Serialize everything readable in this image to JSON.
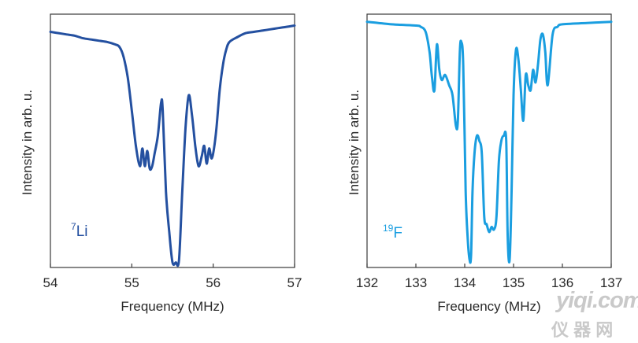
{
  "chart_data": [
    {
      "type": "line",
      "xlabel": "Frequency (MHz)",
      "ylabel": "Intensity in arb. u.",
      "xlim": [
        54,
        57
      ],
      "ylim": [
        0,
        1
      ],
      "xticks": [
        "54",
        "55",
        "56",
        "57"
      ],
      "yticks": [],
      "grid": false,
      "annotation": {
        "sup": "7",
        "text": "Li",
        "placement": "bottom-left"
      },
      "series": [
        {
          "color": "#2450a0",
          "x": [
            54.0,
            54.1,
            54.2,
            54.3,
            54.4,
            54.5,
            54.6,
            54.7,
            54.8,
            54.85,
            54.9,
            54.95,
            55.0,
            55.05,
            55.1,
            55.13,
            55.16,
            55.19,
            55.22,
            55.25,
            55.28,
            55.32,
            55.36,
            55.38,
            55.42,
            55.46,
            55.5,
            55.54,
            55.58,
            55.62,
            55.66,
            55.7,
            55.74,
            55.78,
            55.82,
            55.86,
            55.89,
            55.92,
            55.95,
            55.98,
            56.01,
            56.04,
            56.08,
            56.12,
            56.16,
            56.2,
            56.3,
            56.4,
            56.5,
            56.6,
            56.7,
            56.8,
            56.9,
            57.0
          ],
          "y": [
            0.93,
            0.925,
            0.92,
            0.915,
            0.905,
            0.9,
            0.895,
            0.89,
            0.88,
            0.87,
            0.83,
            0.75,
            0.62,
            0.48,
            0.4,
            0.47,
            0.4,
            0.46,
            0.39,
            0.4,
            0.45,
            0.52,
            0.65,
            0.62,
            0.3,
            0.14,
            0.02,
            0.02,
            0.03,
            0.3,
            0.55,
            0.68,
            0.6,
            0.48,
            0.4,
            0.44,
            0.48,
            0.41,
            0.47,
            0.43,
            0.47,
            0.55,
            0.7,
            0.8,
            0.86,
            0.89,
            0.91,
            0.925,
            0.93,
            0.935,
            0.94,
            0.945,
            0.95,
            0.955
          ]
        }
      ]
    },
    {
      "type": "line",
      "xlabel": "Frequency (MHz)",
      "ylabel": "Intensity in arb. u.",
      "xlim": [
        132,
        137
      ],
      "ylim": [
        0,
        1
      ],
      "xticks": [
        "132",
        "133",
        "134",
        "135",
        "136",
        "137"
      ],
      "yticks": [],
      "grid": false,
      "annotation": {
        "sup": "19",
        "text": "F",
        "placement": "bottom-left"
      },
      "series": [
        {
          "color": "#1a9ee0",
          "x": [
            132.0,
            132.5,
            133.0,
            133.1,
            133.2,
            133.28,
            133.33,
            133.38,
            133.43,
            133.48,
            133.53,
            133.6,
            133.68,
            133.75,
            133.82,
            133.86,
            133.9,
            133.93,
            133.97,
            134.02,
            134.06,
            134.1,
            134.13,
            134.16,
            134.2,
            134.25,
            134.3,
            134.35,
            134.4,
            134.45,
            134.5,
            134.55,
            134.6,
            134.65,
            134.7,
            134.75,
            134.8,
            134.85,
            134.88,
            134.92,
            134.96,
            135.0,
            135.05,
            135.1,
            135.15,
            135.2,
            135.25,
            135.3,
            135.35,
            135.4,
            135.45,
            135.5,
            135.55,
            135.6,
            135.65,
            135.7,
            135.8,
            135.9,
            136.0,
            136.5,
            137.0
          ],
          "y": [
            0.97,
            0.96,
            0.955,
            0.95,
            0.93,
            0.85,
            0.75,
            0.7,
            0.88,
            0.78,
            0.74,
            0.76,
            0.72,
            0.68,
            0.56,
            0.58,
            0.85,
            0.89,
            0.8,
            0.3,
            0.12,
            0.03,
            0.05,
            0.3,
            0.45,
            0.52,
            0.5,
            0.45,
            0.2,
            0.17,
            0.14,
            0.16,
            0.15,
            0.2,
            0.42,
            0.5,
            0.52,
            0.5,
            0.12,
            0.03,
            0.3,
            0.68,
            0.86,
            0.82,
            0.7,
            0.58,
            0.76,
            0.72,
            0.7,
            0.78,
            0.73,
            0.8,
            0.9,
            0.92,
            0.85,
            0.72,
            0.92,
            0.95,
            0.96,
            0.965,
            0.97
          ]
        }
      ]
    }
  ],
  "watermark": {
    "brand": "yiqi.com",
    "chars": "仪 器 网"
  }
}
